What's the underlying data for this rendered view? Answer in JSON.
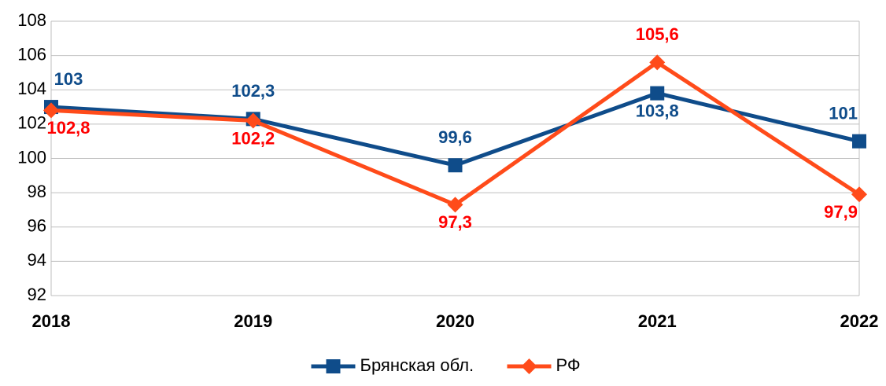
{
  "chart_data": {
    "type": "line",
    "categories": [
      "2018",
      "2019",
      "2020",
      "2021",
      "2022"
    ],
    "series": [
      {
        "name": "Брянская обл.",
        "color": "#0f4c8a",
        "label_color": "#0f4c8a",
        "marker": "square",
        "values": [
          103,
          102.3,
          99.6,
          103.8,
          101
        ],
        "value_labels": [
          "103",
          "102,3",
          "99,6",
          "103,8",
          "101"
        ]
      },
      {
        "name": "РФ",
        "color": "#ff4b1a",
        "label_color": "#ff0000",
        "marker": "diamond",
        "values": [
          102.8,
          102.2,
          97.3,
          105.6,
          97.9
        ],
        "value_labels": [
          "102,8",
          "102,2",
          "97,3",
          "105,6",
          "97,9"
        ]
      }
    ],
    "ylim": [
      92,
      108
    ],
    "yticks": [
      92,
      94,
      96,
      98,
      100,
      102,
      104,
      106,
      108
    ],
    "grid": true,
    "legend": "bottom"
  }
}
